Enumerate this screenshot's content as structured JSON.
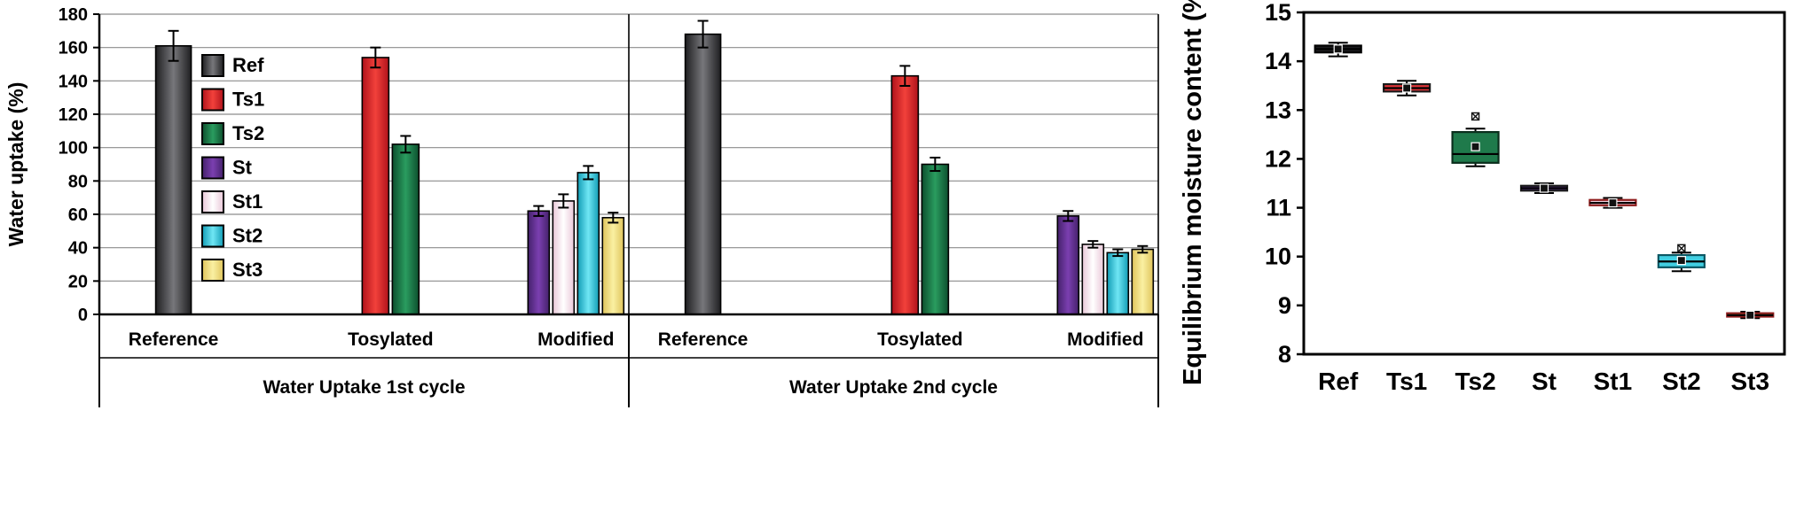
{
  "chart_data": [
    {
      "type": "bar",
      "title": "",
      "ylabel": "Water uptake (%)",
      "xlabel": "",
      "ylim": [
        0,
        180
      ],
      "ytick_step": 20,
      "grid": "horizontal",
      "legend_position": "inside-top-left",
      "series_styles": [
        {
          "label": "Ref",
          "edge": "#1f1f21",
          "center": "#77777b"
        },
        {
          "label": "Ts1",
          "edge": "#b0121b",
          "center": "#f2413b"
        },
        {
          "label": "Ts2",
          "edge": "#0d4f2e",
          "center": "#2a9c5f"
        },
        {
          "label": "St",
          "edge": "#44216b",
          "center": "#7b3fb0"
        },
        {
          "label": "St1",
          "edge": "#e9c7d8",
          "center": "#ffffff"
        },
        {
          "label": "St2",
          "edge": "#129cb5",
          "center": "#6fe6f4"
        },
        {
          "label": "St3",
          "edge": "#dfc45c",
          "center": "#faf0a2"
        }
      ],
      "panels": [
        {
          "title": "Water Uptake 1st cycle",
          "groups": [
            {
              "label": "Reference",
              "bars": [
                {
                  "series": "Ref",
                  "value": 161,
                  "error": 9
                }
              ]
            },
            {
              "label": "Tosylated",
              "bars": [
                {
                  "series": "Ts1",
                  "value": 154,
                  "error": 6
                },
                {
                  "series": "Ts2",
                  "value": 102,
                  "error": 5
                }
              ]
            },
            {
              "label": "Modified",
              "bars": [
                {
                  "series": "St",
                  "value": 62,
                  "error": 3
                },
                {
                  "series": "St1",
                  "value": 68,
                  "error": 4
                },
                {
                  "series": "St2",
                  "value": 85,
                  "error": 4
                },
                {
                  "series": "St3",
                  "value": 58,
                  "error": 3
                }
              ]
            }
          ]
        },
        {
          "title": "Water Uptake 2nd cycle",
          "groups": [
            {
              "label": "Reference",
              "bars": [
                {
                  "series": "Ref",
                  "value": 168,
                  "error": 8
                }
              ]
            },
            {
              "label": "Tosylated",
              "bars": [
                {
                  "series": "Ts1",
                  "value": 143,
                  "error": 6
                },
                {
                  "series": "Ts2",
                  "value": 90,
                  "error": 4
                }
              ]
            },
            {
              "label": "Modified",
              "bars": [
                {
                  "series": "St",
                  "value": 59,
                  "error": 3
                },
                {
                  "series": "St1",
                  "value": 42,
                  "error": 2
                },
                {
                  "series": "St2",
                  "value": 37,
                  "error": 2
                },
                {
                  "series": "St3",
                  "value": 39,
                  "error": 2
                }
              ]
            }
          ]
        }
      ]
    },
    {
      "type": "box",
      "title": "",
      "ylabel": "Equilibrium moisture content (%)",
      "xlabel": "",
      "ylim": [
        8,
        15
      ],
      "ytick_step": 1,
      "grid": "none",
      "categories": [
        "Ref",
        "Ts1",
        "Ts2",
        "St",
        "St1",
        "St2",
        "St3"
      ],
      "boxes": [
        {
          "label": "Ref",
          "whisker_low": 14.1,
          "q1": 14.18,
          "median": 14.25,
          "q3": 14.32,
          "whisker_high": 14.38,
          "mean": 14.25,
          "outliers": [],
          "fill": "#1c1c1e",
          "edge": "#000000"
        },
        {
          "label": "Ts1",
          "whisker_low": 13.3,
          "q1": 13.38,
          "median": 13.45,
          "q3": 13.53,
          "whisker_high": 13.6,
          "mean": 13.45,
          "outliers": [],
          "fill": "#e03438",
          "edge": "#1a1a1a"
        },
        {
          "label": "Ts2",
          "whisker_low": 11.85,
          "q1": 11.92,
          "median": 12.1,
          "q3": 12.55,
          "whisker_high": 12.62,
          "mean": 12.25,
          "outliers": [
            12.87
          ],
          "fill": "#1f7a4b",
          "edge": "#0b2f1d"
        },
        {
          "label": "St",
          "whisker_low": 11.3,
          "q1": 11.35,
          "median": 11.4,
          "q3": 11.45,
          "whisker_high": 11.5,
          "mean": 11.4,
          "outliers": [],
          "fill": "#56307f",
          "edge": "#1a1a1a"
        },
        {
          "label": "St1",
          "whisker_low": 11.0,
          "q1": 11.05,
          "median": 11.1,
          "q3": 11.16,
          "whisker_high": 11.2,
          "mean": 11.1,
          "outliers": [],
          "fill": "#f0d3e0",
          "edge": "#8f1d1d"
        },
        {
          "label": "St2",
          "whisker_low": 9.7,
          "q1": 9.78,
          "median": 9.9,
          "q3": 10.03,
          "whisker_high": 10.08,
          "mean": 9.92,
          "outliers": [
            10.17
          ],
          "fill": "#41cfe2",
          "edge": "#0d5864"
        },
        {
          "label": "St3",
          "whisker_low": 8.74,
          "q1": 8.77,
          "median": 8.8,
          "q3": 8.84,
          "whisker_high": 8.87,
          "mean": 8.8,
          "outliers": [],
          "fill": "#f2df76",
          "edge": "#8f1d1d"
        }
      ]
    }
  ]
}
